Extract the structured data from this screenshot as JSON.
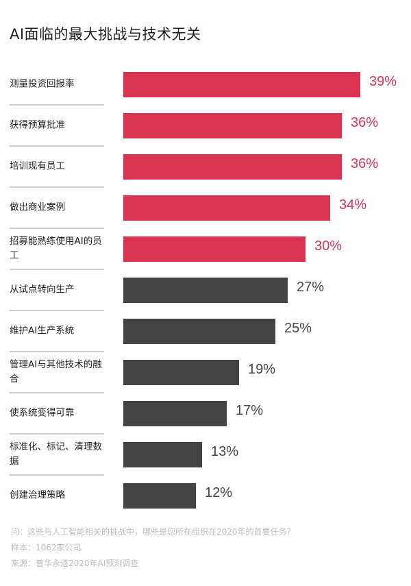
{
  "title": "AI面临的最大挑战与技术无关",
  "colors": {
    "highlight": "#d93552",
    "default": "#444444",
    "separator": "#cfcfcf"
  },
  "rows": [
    {
      "label": "测量投资回报率",
      "value": 39,
      "value_text": "39%",
      "highlight": true
    },
    {
      "label": "获得预算批准",
      "value": 36,
      "value_text": "36%",
      "highlight": true
    },
    {
      "label": "培训现有员工",
      "value": 36,
      "value_text": "36%",
      "highlight": true
    },
    {
      "label": "做出商业案例",
      "value": 34,
      "value_text": "34%",
      "highlight": true
    },
    {
      "label": "招募能熟练使用AI的员工",
      "value": 30,
      "value_text": "30%",
      "highlight": true
    },
    {
      "label": "从试点转向生产",
      "value": 27,
      "value_text": "27%",
      "highlight": false
    },
    {
      "label": "维护AI生产系统",
      "value": 25,
      "value_text": "25%",
      "highlight": false
    },
    {
      "label": "管理AI与其他技术的融合",
      "value": 19,
      "value_text": "19%",
      "highlight": false
    },
    {
      "label": "使系统变得可靠",
      "value": 17,
      "value_text": "17%",
      "highlight": false
    },
    {
      "label": "标准化、标记、清理数据",
      "value": 13,
      "value_text": "13%",
      "highlight": false
    },
    {
      "label": "创建治理策略",
      "value": 12,
      "value_text": "12%",
      "highlight": false
    }
  ],
  "footer": {
    "question": "问：这些与人工智能相关的挑战中，哪些是您所在组织在2020年的首要任务？",
    "sample": "样本：1062家公司",
    "source": "来源：普华永道2020年AI预测调查"
  },
  "chart_data": {
    "type": "bar",
    "orientation": "horizontal",
    "title": "AI面临的最大挑战与技术无关",
    "categories": [
      "测量投资回报率",
      "获得预算批准",
      "培训现有员工",
      "做出商业案例",
      "招募能熟练使用AI的员工",
      "从试点转向生产",
      "维护AI生产系统",
      "管理AI与其他技术的融合",
      "使系统变得可靠",
      "标准化、标记、清理数据",
      "创建治理策略"
    ],
    "values": [
      39,
      36,
      36,
      34,
      30,
      27,
      25,
      19,
      17,
      13,
      12
    ],
    "unit": "%",
    "highlighted_top_n": 5,
    "xlabel": "",
    "ylabel": "",
    "grid": false,
    "legend": null,
    "notes": [
      "问：这些与人工智能相关的挑战中，哪些是您所在组织在2020年的首要任务？",
      "样本：1062家公司",
      "来源：普华永道2020年AI预测调查"
    ]
  }
}
